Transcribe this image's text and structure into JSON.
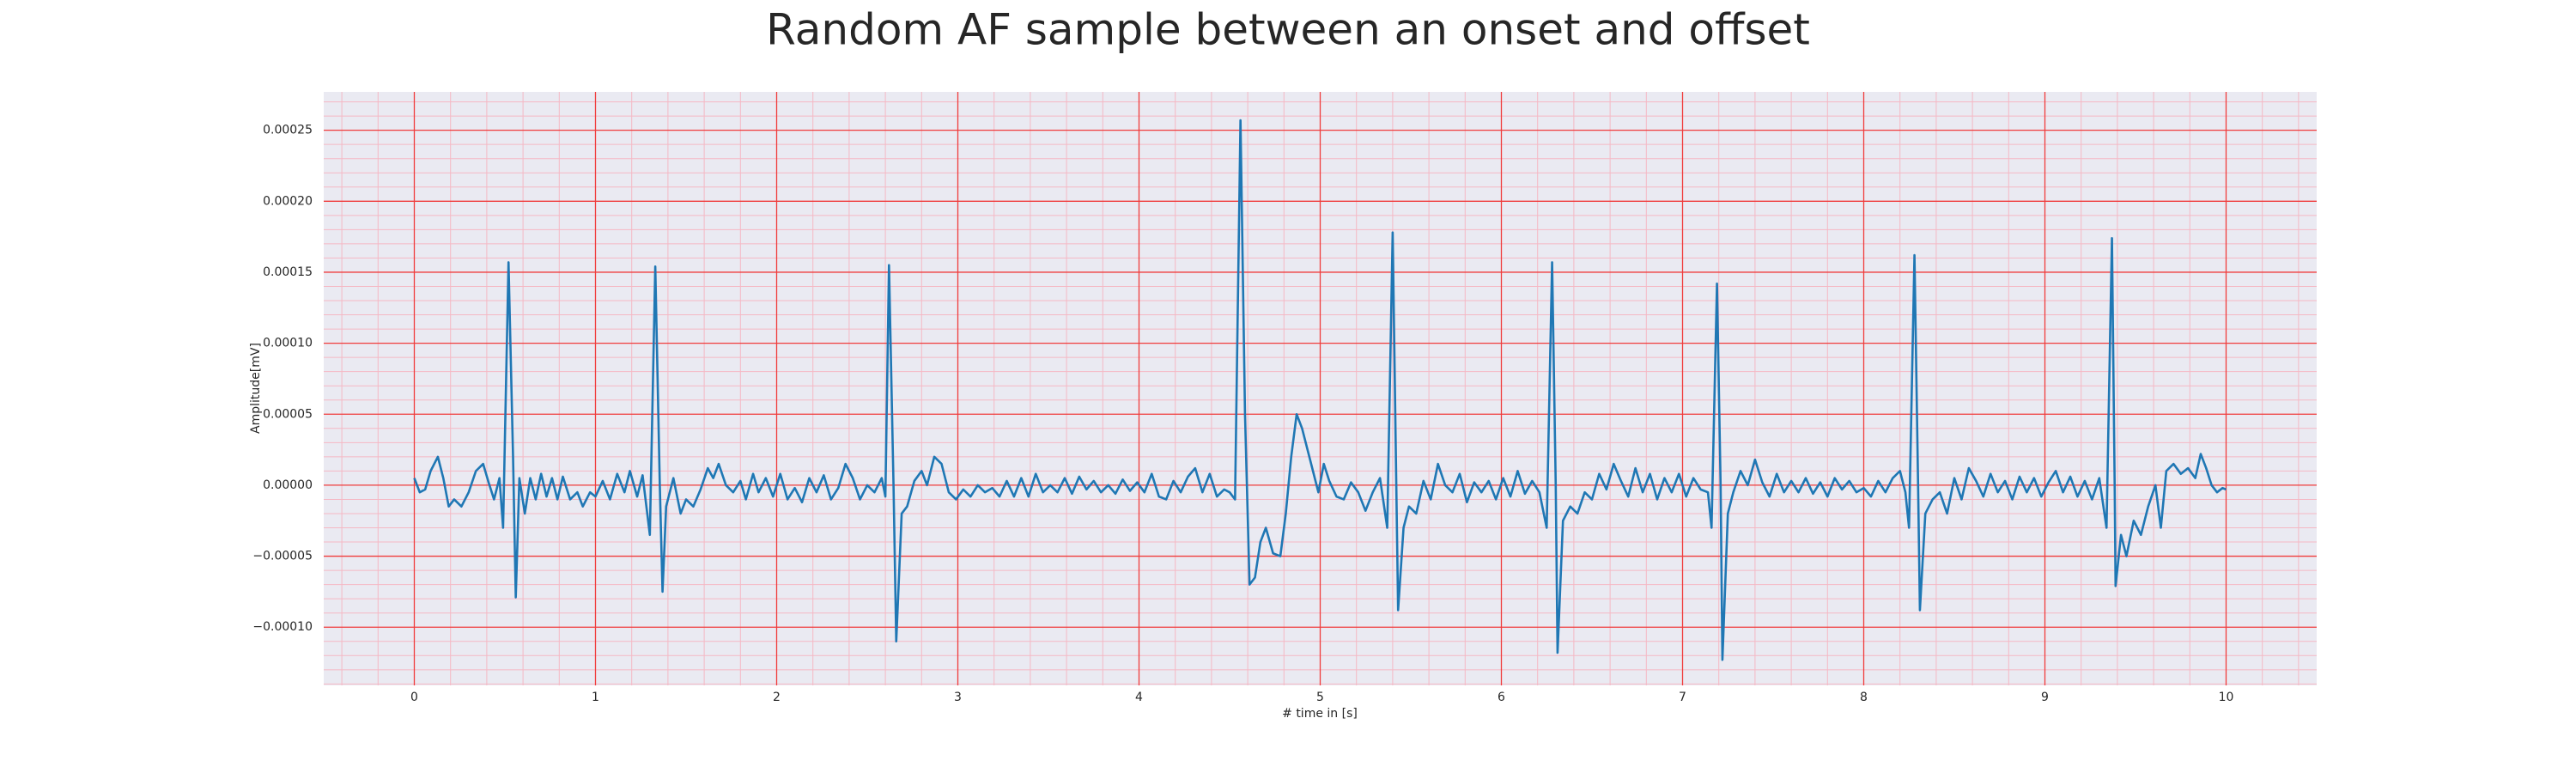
{
  "chart_data": {
    "type": "line",
    "title": "Random AF sample between an onset and offset",
    "x_label": "# time in [s]",
    "y_label": "Amplitude[mV]",
    "color": "#1f77b4",
    "grid": true,
    "grid_color": "#f03c3c",
    "minor_grid": true,
    "minor_grid_color": "#f5b8c4",
    "minor_grid_divisions": 5,
    "xlim": [
      -0.5,
      10.5
    ],
    "ylim": [
      -0.000141,
      0.000277
    ],
    "xticks": [
      0,
      1,
      2,
      3,
      4,
      5,
      6,
      7,
      8,
      9,
      10
    ],
    "yticks": [
      {
        "value": -0.0001,
        "label": "−0.00010"
      },
      {
        "value": -5e-05,
        "label": "−0.00005"
      },
      {
        "value": 0,
        "label": "0.00000"
      },
      {
        "value": 5e-05,
        "label": "0.00005"
      },
      {
        "value": 0.0001,
        "label": "0.00010"
      },
      {
        "value": 0.00015,
        "label": "0.00015"
      },
      {
        "value": 0.0002,
        "label": "0.00020"
      },
      {
        "value": 0.00025,
        "label": "0.00025"
      }
    ],
    "x": [
      0.0,
      0.03,
      0.06,
      0.09,
      0.13,
      0.16,
      0.19,
      0.22,
      0.26,
      0.3,
      0.34,
      0.38,
      0.41,
      0.44,
      0.47,
      0.49,
      0.52,
      0.545,
      0.56,
      0.58,
      0.61,
      0.64,
      0.67,
      0.7,
      0.73,
      0.76,
      0.79,
      0.82,
      0.86,
      0.9,
      0.93,
      0.97,
      1.0,
      1.04,
      1.08,
      1.12,
      1.16,
      1.19,
      1.23,
      1.26,
      1.3,
      1.33,
      1.355,
      1.37,
      1.39,
      1.43,
      1.47,
      1.5,
      1.54,
      1.58,
      1.62,
      1.65,
      1.68,
      1.72,
      1.76,
      1.8,
      1.83,
      1.87,
      1.9,
      1.94,
      1.98,
      2.02,
      2.06,
      2.1,
      2.14,
      2.18,
      2.22,
      2.26,
      2.3,
      2.34,
      2.38,
      2.42,
      2.46,
      2.5,
      2.54,
      2.58,
      2.6,
      2.62,
      2.645,
      2.66,
      2.69,
      2.72,
      2.76,
      2.8,
      2.83,
      2.87,
      2.91,
      2.95,
      2.99,
      3.03,
      3.07,
      3.11,
      3.15,
      3.19,
      3.23,
      3.27,
      3.31,
      3.35,
      3.39,
      3.43,
      3.47,
      3.51,
      3.55,
      3.59,
      3.63,
      3.67,
      3.71,
      3.75,
      3.79,
      3.83,
      3.87,
      3.91,
      3.95,
      3.99,
      4.03,
      4.07,
      4.11,
      4.15,
      4.19,
      4.23,
      4.27,
      4.31,
      4.35,
      4.39,
      4.43,
      4.47,
      4.5,
      4.53,
      4.56,
      4.585,
      4.61,
      4.64,
      4.67,
      4.7,
      4.74,
      4.78,
      4.81,
      4.84,
      4.87,
      4.9,
      4.93,
      4.96,
      4.99,
      5.02,
      5.05,
      5.09,
      5.13,
      5.17,
      5.21,
      5.25,
      5.29,
      5.33,
      5.37,
      5.4,
      5.42,
      5.43,
      5.46,
      5.49,
      5.53,
      5.57,
      5.61,
      5.65,
      5.69,
      5.73,
      5.77,
      5.81,
      5.85,
      5.89,
      5.93,
      5.97,
      6.01,
      6.05,
      6.09,
      6.13,
      6.17,
      6.21,
      6.25,
      6.28,
      6.3,
      6.31,
      6.34,
      6.38,
      6.42,
      6.46,
      6.5,
      6.54,
      6.58,
      6.62,
      6.66,
      6.7,
      6.74,
      6.78,
      6.82,
      6.86,
      6.9,
      6.94,
      6.98,
      7.02,
      7.06,
      7.1,
      7.14,
      7.16,
      7.19,
      7.21,
      7.22,
      7.25,
      7.28,
      7.32,
      7.36,
      7.4,
      7.44,
      7.48,
      7.52,
      7.56,
      7.6,
      7.64,
      7.68,
      7.72,
      7.76,
      7.8,
      7.84,
      7.88,
      7.92,
      7.96,
      8.0,
      8.04,
      8.08,
      8.12,
      8.16,
      8.2,
      8.23,
      8.25,
      8.28,
      8.3,
      8.31,
      8.34,
      8.38,
      8.42,
      8.46,
      8.5,
      8.54,
      8.58,
      8.62,
      8.66,
      8.7,
      8.74,
      8.78,
      8.82,
      8.86,
      8.9,
      8.94,
      8.98,
      9.02,
      9.06,
      9.1,
      9.14,
      9.18,
      9.22,
      9.26,
      9.3,
      9.34,
      9.37,
      9.385,
      9.39,
      9.42,
      9.45,
      9.49,
      9.53,
      9.57,
      9.61,
      9.64,
      9.67,
      9.71,
      9.75,
      9.79,
      9.83,
      9.86,
      9.89,
      9.92,
      9.95,
      9.98,
      10.0
    ],
    "values": [
      5e-06,
      -5e-06,
      -3e-06,
      1e-05,
      2e-05,
      5e-06,
      -1.5e-05,
      -1e-05,
      -1.5e-05,
      -5e-06,
      1e-05,
      1.5e-05,
      2e-06,
      -1e-05,
      5e-06,
      -3e-05,
      0.000157,
      2e-05,
      -7.9e-05,
      5e-06,
      -2e-05,
      5e-06,
      -1e-05,
      8e-06,
      -8e-06,
      5e-06,
      -1e-05,
      6e-06,
      -1e-05,
      -5e-06,
      -1.5e-05,
      -5e-06,
      -8e-06,
      3e-06,
      -1e-05,
      8e-06,
      -5e-06,
      1e-05,
      -8e-06,
      7e-06,
      -3.5e-05,
      0.000154,
      0,
      -7.5e-05,
      -1.5e-05,
      5e-06,
      -2e-05,
      -1e-05,
      -1.5e-05,
      -3e-06,
      1.2e-05,
      5e-06,
      1.5e-05,
      0,
      -5e-06,
      3e-06,
      -1e-05,
      8e-06,
      -5e-06,
      5e-06,
      -8e-06,
      8e-06,
      -1e-05,
      -2e-06,
      -1.2e-05,
      5e-06,
      -5e-06,
      7e-06,
      -1e-05,
      -2e-06,
      1.5e-05,
      5e-06,
      -1e-05,
      0,
      -5e-06,
      5e-06,
      -8e-06,
      0.000155,
      0,
      -0.00011,
      -2e-05,
      -1.5e-05,
      3e-06,
      1e-05,
      0,
      2e-05,
      1.5e-05,
      -5e-06,
      -1e-05,
      -3e-06,
      -8e-06,
      0,
      -5e-06,
      -2e-06,
      -8e-06,
      3e-06,
      -8e-06,
      5e-06,
      -8e-06,
      8e-06,
      -5e-06,
      0,
      -5e-06,
      5e-06,
      -6e-06,
      6e-06,
      -3e-06,
      3e-06,
      -5e-06,
      0,
      -6e-06,
      4e-06,
      -4e-06,
      2e-06,
      -5e-06,
      8e-06,
      -8e-06,
      -1e-05,
      3e-06,
      -5e-06,
      6e-06,
      1.2e-05,
      -5e-06,
      8e-06,
      -8e-06,
      -3e-06,
      -5e-06,
      -1e-05,
      0.000257,
      5e-05,
      -7e-05,
      -6.5e-05,
      -4e-05,
      -3e-05,
      -4.8e-05,
      -5e-05,
      -2e-05,
      2e-05,
      5e-05,
      4e-05,
      2.5e-05,
      1e-05,
      -5e-06,
      1.5e-05,
      3e-06,
      -8e-06,
      -1e-05,
      2e-06,
      -5e-06,
      -1.8e-05,
      -5e-06,
      5e-06,
      -3e-05,
      0.000178,
      0,
      -8.8e-05,
      -3e-05,
      -1.5e-05,
      -2e-05,
      3e-06,
      -1e-05,
      1.5e-05,
      0,
      -5e-06,
      8e-06,
      -1.2e-05,
      2e-06,
      -5e-06,
      3e-06,
      -1e-05,
      5e-06,
      -8e-06,
      1e-05,
      -6e-06,
      3e-06,
      -5e-06,
      -3e-05,
      0.000157,
      0,
      -0.000118,
      -2.5e-05,
      -1.5e-05,
      -2e-05,
      -5e-06,
      -1e-05,
      8e-06,
      -3e-06,
      1.5e-05,
      3e-06,
      -8e-06,
      1.2e-05,
      -5e-06,
      8e-06,
      -1e-05,
      5e-06,
      -5e-06,
      8e-06,
      -8e-06,
      5e-06,
      -3e-06,
      -5e-06,
      -3e-05,
      0.000142,
      0,
      -0.000123,
      -2e-05,
      -5e-06,
      1e-05,
      0,
      1.8e-05,
      2e-06,
      -8e-06,
      8e-06,
      -5e-06,
      3e-06,
      -5e-06,
      5e-06,
      -6e-06,
      2e-06,
      -8e-06,
      5e-06,
      -3e-06,
      3e-06,
      -5e-06,
      -2e-06,
      -8e-06,
      3e-06,
      -5e-06,
      5e-06,
      1e-05,
      -5e-06,
      -3e-05,
      0.000162,
      0,
      -8.8e-05,
      -2e-05,
      -1e-05,
      -5e-06,
      -2e-05,
      5e-06,
      -1e-05,
      1.2e-05,
      3e-06,
      -8e-06,
      8e-06,
      -5e-06,
      3e-06,
      -1e-05,
      6e-06,
      -5e-06,
      5e-06,
      -8e-06,
      2e-06,
      1e-05,
      -5e-06,
      6e-06,
      -8e-06,
      3e-06,
      -1e-05,
      5e-06,
      -3e-05,
      0.000174,
      0,
      -7.1e-05,
      -3.5e-05,
      -5e-05,
      -2.5e-05,
      -3.5e-05,
      -1.5e-05,
      0,
      -3e-05,
      1e-05,
      1.5e-05,
      8e-06,
      1.2e-05,
      5e-06,
      2.2e-05,
      1.2e-05,
      0,
      -5e-06,
      -2e-06,
      -3e-06
    ]
  }
}
